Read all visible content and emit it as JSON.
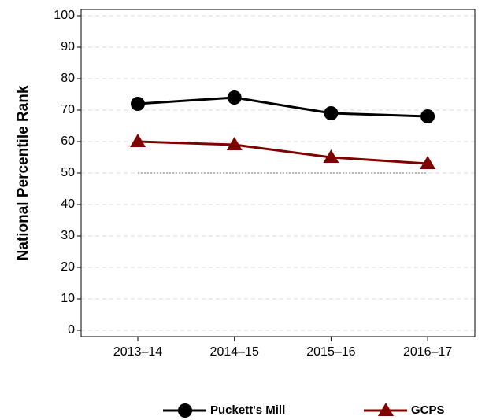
{
  "chart_data": {
    "type": "line",
    "y_label": "National Percentile Rank",
    "categories": [
      "2013–14",
      "2014–15",
      "2015–16",
      "2016–17"
    ],
    "series": [
      {
        "name": "Puckett's Mill",
        "color": "#000000",
        "marker": "circle",
        "values": [
          72,
          74,
          69,
          68
        ]
      },
      {
        "name": "GCPS",
        "color": "#800000",
        "marker": "triangle",
        "values": [
          60,
          59,
          55,
          53
        ]
      }
    ],
    "reference_line": 50,
    "ylim": [
      -2,
      102
    ],
    "yticks": [
      0,
      10,
      20,
      30,
      40,
      50,
      60,
      70,
      80,
      90,
      100
    ],
    "grid": true,
    "legend": "bottom"
  }
}
